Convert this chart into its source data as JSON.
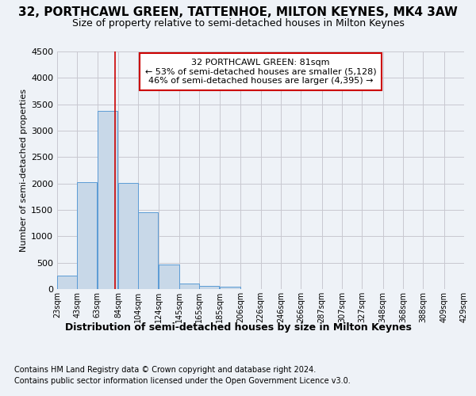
{
  "title1": "32, PORTHCAWL GREEN, TATTENHOE, MILTON KEYNES, MK4 3AW",
  "title2": "Size of property relative to semi-detached houses in Milton Keynes",
  "xlabel": "Distribution of semi-detached houses by size in Milton Keynes",
  "ylabel": "Number of semi-detached properties",
  "footer1": "Contains HM Land Registry data © Crown copyright and database right 2024.",
  "footer2": "Contains public sector information licensed under the Open Government Licence v3.0.",
  "annotation_title": "32 PORTHCAWL GREEN: 81sqm",
  "annotation_line1": "← 53% of semi-detached houses are smaller (5,128)",
  "annotation_line2": "46% of semi-detached houses are larger (4,395) →",
  "property_size": 81,
  "bar_left_edges": [
    23,
    43,
    63,
    84,
    104,
    124,
    145,
    165,
    185,
    206,
    226,
    246,
    266,
    287,
    307,
    327,
    348,
    368,
    388,
    409
  ],
  "bar_widths": [
    20,
    20,
    21,
    20,
    20,
    21,
    20,
    20,
    21,
    20,
    20,
    20,
    21,
    20,
    20,
    21,
    20,
    20,
    21,
    20
  ],
  "bar_heights": [
    250,
    2025,
    3370,
    2010,
    1460,
    470,
    100,
    55,
    45,
    0,
    0,
    0,
    0,
    0,
    0,
    0,
    0,
    0,
    0,
    0
  ],
  "bar_color": "#c8d8e8",
  "bar_edgecolor": "#5b9bd5",
  "grid_color": "#c8c8d0",
  "vline_color": "#cc0000",
  "vline_x": 81,
  "ylim": [
    0,
    4500
  ],
  "yticks": [
    0,
    500,
    1000,
    1500,
    2000,
    2500,
    3000,
    3500,
    4000,
    4500
  ],
  "xtick_labels": [
    "23sqm",
    "43sqm",
    "63sqm",
    "84sqm",
    "104sqm",
    "124sqm",
    "145sqm",
    "165sqm",
    "185sqm",
    "206sqm",
    "226sqm",
    "246sqm",
    "266sqm",
    "287sqm",
    "307sqm",
    "327sqm",
    "348sqm",
    "368sqm",
    "388sqm",
    "409sqm",
    "429sqm"
  ],
  "xtick_positions": [
    23,
    43,
    63,
    84,
    104,
    124,
    145,
    165,
    185,
    206,
    226,
    246,
    266,
    287,
    307,
    327,
    348,
    368,
    388,
    409,
    429
  ],
  "bg_color": "#eef2f7",
  "plot_bg_color": "#eef2f7",
  "annotation_box_color": "#ffffff",
  "annotation_box_edgecolor": "#cc0000",
  "title1_fontsize": 11,
  "title2_fontsize": 9,
  "ylabel_fontsize": 8,
  "xlabel_fontsize": 9,
  "ytick_fontsize": 8,
  "xtick_fontsize": 7,
  "footer_fontsize": 7
}
